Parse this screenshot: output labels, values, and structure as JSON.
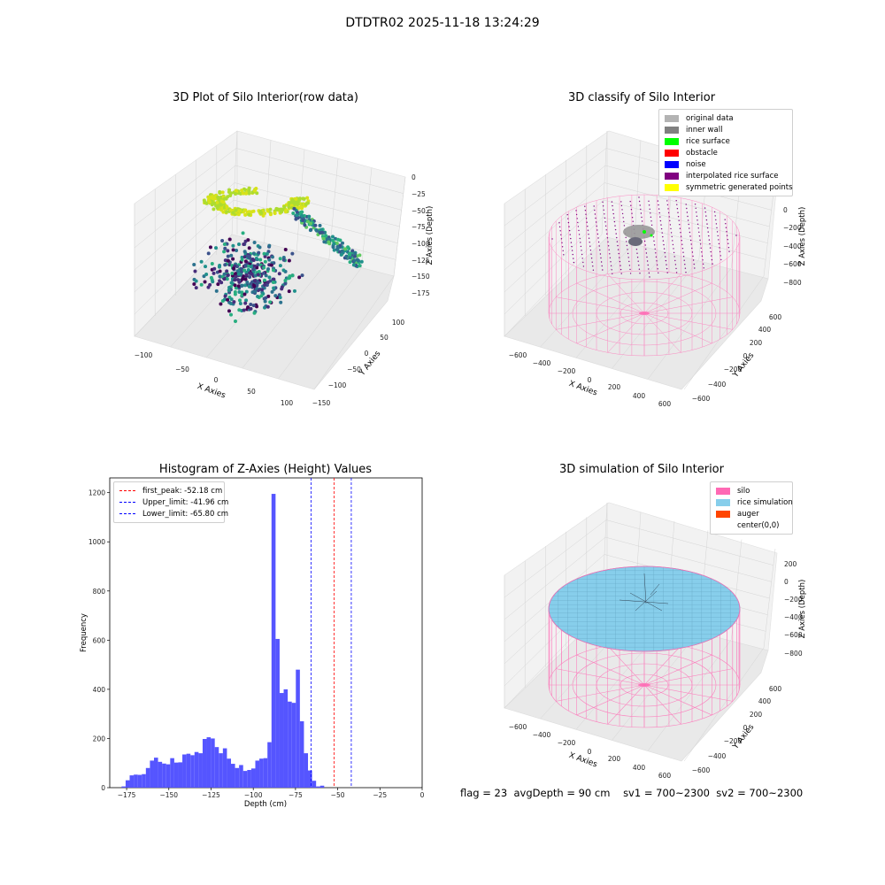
{
  "suptitle": "DTDTR02 2025-11-18 13:24:29",
  "panels": {
    "raw": {
      "title": "3D Plot of Silo Interior(row data)",
      "xlabel": "X Axies",
      "ylabel": "Y Axies",
      "zlabel": "Z Axies (Depth)",
      "xticks": [
        "−100",
        "−50",
        "0",
        "50",
        "100"
      ],
      "yticks": [
        "−150",
        "−100",
        "−50",
        "0",
        "50",
        "100"
      ],
      "zticks": [
        "0",
        "−25",
        "−50",
        "−75",
        "−100",
        "−125",
        "−150",
        "−175"
      ]
    },
    "classify": {
      "title": "3D classify of Silo Interior",
      "xlabel": "X Axies",
      "ylabel": "Y Axies",
      "zlabel": "Z Axies (Depth)",
      "xticks": [
        "−600",
        "−400",
        "−200",
        "0",
        "200",
        "400",
        "600"
      ],
      "yticks": [
        "−600",
        "−400",
        "−200",
        "0",
        "200",
        "400",
        "600"
      ],
      "zticks": [
        "0",
        "−200",
        "−400",
        "−600",
        "−800"
      ],
      "legend": [
        {
          "label": "original data",
          "color": "#b3b3b3"
        },
        {
          "label": "inner wall",
          "color": "#808080"
        },
        {
          "label": "rice surface",
          "color": "#00ff00"
        },
        {
          "label": "obstacle",
          "color": "#ff0000"
        },
        {
          "label": "noise",
          "color": "#0000ff"
        },
        {
          "label": "interpolated rice surface",
          "color": "#800080"
        },
        {
          "label": "symmetric generated points",
          "color": "#ffff00"
        }
      ]
    },
    "simulation": {
      "title": "3D simulation of Silo Interior",
      "xlabel": "X Axies",
      "ylabel": "Y Axies",
      "zlabel": "Z Axies (Depth)",
      "xticks": [
        "−600",
        "−400",
        "−200",
        "0",
        "200",
        "400",
        "600"
      ],
      "yticks": [
        "−600",
        "−400",
        "−200",
        "0",
        "200",
        "400",
        "600"
      ],
      "zticks": [
        "200",
        "0",
        "−200",
        "−400",
        "−600",
        "−800"
      ],
      "legend": [
        {
          "label": "silo",
          "color": "#ff69b4"
        },
        {
          "label": "rice simulation",
          "color": "#87ceeb"
        },
        {
          "label": "auger",
          "color": "#ff4500"
        },
        {
          "label": "center(0,0)",
          "color": "#ffffff"
        }
      ]
    }
  },
  "footer": {
    "flag": "flag = 23",
    "avg": "avgDepth = 90 cm",
    "sv1": "sv1 = 700~2300",
    "sv2": "sv2 = 700~2300"
  },
  "chart_data": [
    {
      "type": "histogram",
      "title": "Histogram of Z-Axies (Height) Values",
      "xlabel": "Depth (cm)",
      "ylabel": "Frequency",
      "xlim": [
        -185,
        0
      ],
      "ylim": [
        0,
        1260
      ],
      "bar_color": "#5555ff",
      "xticks": [
        -175,
        -150,
        -125,
        -100,
        -75,
        -50,
        -25,
        0
      ],
      "xtick_labels": [
        "−175",
        "−150",
        "−125",
        "−100",
        "−75",
        "−50",
        "−25",
        "0"
      ],
      "yticks": [
        0,
        200,
        400,
        600,
        800,
        1000,
        1200
      ],
      "bins": [
        {
          "x0": -178.0,
          "x1": -175.6,
          "count": 5
        },
        {
          "x0": -175.6,
          "x1": -173.2,
          "count": 30
        },
        {
          "x0": -173.2,
          "x1": -170.8,
          "count": 50
        },
        {
          "x0": -170.8,
          "x1": -168.4,
          "count": 53
        },
        {
          "x0": -168.4,
          "x1": -166.0,
          "count": 52
        },
        {
          "x0": -166.0,
          "x1": -163.6,
          "count": 55
        },
        {
          "x0": -163.6,
          "x1": -161.2,
          "count": 80
        },
        {
          "x0": -161.2,
          "x1": -158.8,
          "count": 110
        },
        {
          "x0": -158.8,
          "x1": -156.4,
          "count": 122
        },
        {
          "x0": -156.4,
          "x1": -154.0,
          "count": 105
        },
        {
          "x0": -154.0,
          "x1": -151.6,
          "count": 98
        },
        {
          "x0": -151.6,
          "x1": -149.2,
          "count": 95
        },
        {
          "x0": -149.2,
          "x1": -146.8,
          "count": 120
        },
        {
          "x0": -146.8,
          "x1": -144.4,
          "count": 102
        },
        {
          "x0": -144.4,
          "x1": -142.0,
          "count": 103
        },
        {
          "x0": -142.0,
          "x1": -139.6,
          "count": 135
        },
        {
          "x0": -139.6,
          "x1": -137.2,
          "count": 138
        },
        {
          "x0": -137.2,
          "x1": -134.8,
          "count": 132
        },
        {
          "x0": -134.8,
          "x1": -132.4,
          "count": 145
        },
        {
          "x0": -132.4,
          "x1": -130.0,
          "count": 140
        },
        {
          "x0": -130.0,
          "x1": -127.6,
          "count": 198
        },
        {
          "x0": -127.6,
          "x1": -125.2,
          "count": 205
        },
        {
          "x0": -125.2,
          "x1": -122.8,
          "count": 200
        },
        {
          "x0": -122.8,
          "x1": -120.4,
          "count": 165
        },
        {
          "x0": -120.4,
          "x1": -118.0,
          "count": 140
        },
        {
          "x0": -118.0,
          "x1": -115.6,
          "count": 160
        },
        {
          "x0": -115.6,
          "x1": -113.2,
          "count": 118
        },
        {
          "x0": -113.2,
          "x1": -110.8,
          "count": 97
        },
        {
          "x0": -110.8,
          "x1": -108.4,
          "count": 80
        },
        {
          "x0": -108.4,
          "x1": -106.0,
          "count": 92
        },
        {
          "x0": -106.0,
          "x1": -103.6,
          "count": 68
        },
        {
          "x0": -103.6,
          "x1": -101.2,
          "count": 72
        },
        {
          "x0": -101.2,
          "x1": -98.8,
          "count": 78
        },
        {
          "x0": -98.8,
          "x1": -96.4,
          "count": 110
        },
        {
          "x0": -96.4,
          "x1": -94.0,
          "count": 118
        },
        {
          "x0": -94.0,
          "x1": -91.6,
          "count": 120
        },
        {
          "x0": -91.6,
          "x1": -89.2,
          "count": 185
        },
        {
          "x0": -89.2,
          "x1": -86.8,
          "count": 1195
        },
        {
          "x0": -86.8,
          "x1": -84.4,
          "count": 605
        },
        {
          "x0": -84.4,
          "x1": -82.0,
          "count": 385
        },
        {
          "x0": -82.0,
          "x1": -79.6,
          "count": 400
        },
        {
          "x0": -79.6,
          "x1": -77.2,
          "count": 350
        },
        {
          "x0": -77.2,
          "x1": -74.8,
          "count": 345
        },
        {
          "x0": -74.8,
          "x1": -72.4,
          "count": 480
        },
        {
          "x0": -72.4,
          "x1": -70.0,
          "count": 270
        },
        {
          "x0": -70.0,
          "x1": -67.6,
          "count": 140
        },
        {
          "x0": -67.6,
          "x1": -65.2,
          "count": 70
        },
        {
          "x0": -65.2,
          "x1": -62.8,
          "count": 28
        },
        {
          "x0": -62.8,
          "x1": -60.4,
          "count": 5
        },
        {
          "x0": -60.4,
          "x1": -58.0,
          "count": 8
        }
      ],
      "vlines": [
        {
          "label": "first_peak: -52.18 cm",
          "x": -52.18,
          "color": "#ff0000"
        },
        {
          "label": "Upper_limit: -41.96 cm",
          "x": -41.96,
          "color": "#0000ff"
        },
        {
          "label": "Lower_limit: -65.80 cm",
          "x": -65.8,
          "color": "#0000ff"
        }
      ],
      "legend_position": "upper-left"
    }
  ]
}
